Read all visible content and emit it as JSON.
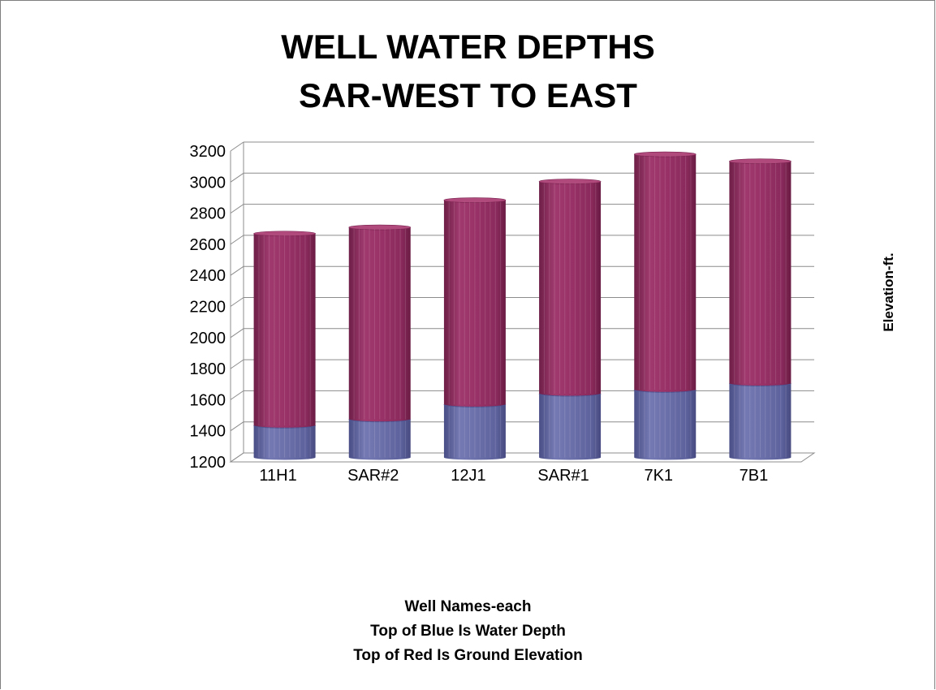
{
  "chart_data": {
    "type": "bar",
    "subtype": "3d-cylinder-overlapped",
    "title_lines": [
      "WELL WATER DEPTHS",
      "SAR-WEST TO EAST"
    ],
    "ylabel": "Elevation-ft.",
    "xlabel_lines": [
      "Well Names-each",
      "Top of Blue Is Water Depth",
      "Top of Red Is Ground Elevation"
    ],
    "categories": [
      "11H1",
      "SAR#2",
      "12J1",
      "SAR#1",
      "7K1",
      "7B1"
    ],
    "series": [
      {
        "values": [
          2640,
          2680,
          2855,
          2975,
          3150,
          3105
        ],
        "color": "#8b2a5c"
      },
      {
        "values": [
          1405,
          1445,
          1540,
          1610,
          1635,
          1675
        ],
        "color": "#5b5f9c"
      }
    ],
    "ylim": [
      1200,
      3200
    ],
    "yticks": [
      "1200",
      "1400",
      "1600",
      "1800",
      "2000",
      "2200",
      "2400",
      "2600",
      "2800",
      "3000",
      "3200"
    ],
    "grid": true,
    "legend": "none"
  }
}
